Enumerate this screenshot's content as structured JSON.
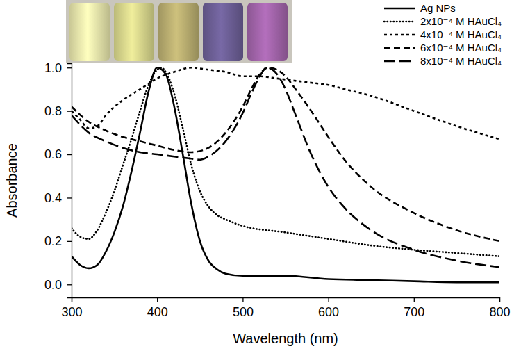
{
  "chart_data": {
    "type": "line",
    "x_label": "Wavelength (nm)",
    "y_label": "Absorbance",
    "xlim": [
      300,
      800
    ],
    "xticks": [
      300,
      400,
      500,
      600,
      700,
      800
    ],
    "ylim": [
      -0.06,
      1.02
    ],
    "yticks": [
      {
        "value": 0,
        "label": "0.0"
      },
      {
        "value": 0.2,
        "label": "0.2"
      },
      {
        "value": 0.4,
        "label": "0.4"
      },
      {
        "value": 0.6,
        "label": "0.6"
      },
      {
        "value": 0.8,
        "label": "0.8"
      },
      {
        "value": 1,
        "label": "1.0"
      }
    ],
    "legend": "top-right",
    "series": [
      {
        "name": "Ag NPs",
        "color": "#000000",
        "line_style": "solid",
        "x": [
          300,
          310,
          320,
          330,
          340,
          350,
          360,
          370,
          380,
          390,
          400,
          410,
          420,
          430,
          440,
          450,
          460,
          470,
          480,
          500,
          550,
          600,
          650,
          700,
          750,
          800
        ],
        "values": [
          0.13,
          0.09,
          0.075,
          0.09,
          0.15,
          0.24,
          0.36,
          0.52,
          0.7,
          0.89,
          1.0,
          0.97,
          0.82,
          0.6,
          0.37,
          0.2,
          0.11,
          0.07,
          0.05,
          0.04,
          0.04,
          0.025,
          0.02,
          0.015,
          0.01,
          0.01
        ]
      },
      {
        "name": "2x10⁻⁴ M HAuCl₄",
        "color": "#000000",
        "line_style": "dotted",
        "x": [
          300,
          310,
          320,
          330,
          340,
          350,
          360,
          370,
          380,
          390,
          400,
          405,
          410,
          420,
          430,
          440,
          450,
          460,
          470,
          480,
          500,
          550,
          600,
          650,
          700,
          750,
          800
        ],
        "values": [
          0.26,
          0.22,
          0.21,
          0.25,
          0.33,
          0.43,
          0.55,
          0.67,
          0.8,
          0.92,
          0.99,
          1.0,
          0.98,
          0.88,
          0.72,
          0.55,
          0.43,
          0.36,
          0.32,
          0.3,
          0.27,
          0.24,
          0.21,
          0.18,
          0.16,
          0.145,
          0.13
        ]
      },
      {
        "name": "4x10⁻⁴ M HAuCl₄",
        "color": "#000000",
        "line_style": "short-dash",
        "x": [
          300,
          310,
          320,
          330,
          340,
          360,
          380,
          400,
          420,
          440,
          460,
          480,
          500,
          520,
          540,
          560,
          580,
          600,
          620,
          650,
          700,
          750,
          800
        ],
        "values": [
          0.8,
          0.76,
          0.72,
          0.73,
          0.78,
          0.85,
          0.9,
          0.95,
          0.98,
          1.0,
          0.99,
          0.98,
          0.96,
          0.96,
          0.95,
          0.94,
          0.93,
          0.92,
          0.9,
          0.87,
          0.8,
          0.73,
          0.67
        ]
      },
      {
        "name": "6x10⁻⁴ M HAuCl₄",
        "color": "#000000",
        "line_style": "dash",
        "x": [
          300,
          320,
          340,
          360,
          380,
          400,
          420,
          440,
          460,
          480,
          500,
          510,
          520,
          530,
          540,
          550,
          560,
          580,
          600,
          620,
          650,
          700,
          750,
          800
        ],
        "values": [
          0.82,
          0.75,
          0.71,
          0.68,
          0.66,
          0.64,
          0.62,
          0.61,
          0.63,
          0.7,
          0.82,
          0.9,
          0.97,
          1.0,
          0.99,
          0.96,
          0.91,
          0.8,
          0.68,
          0.57,
          0.45,
          0.33,
          0.25,
          0.2
        ]
      },
      {
        "name": "8x10⁻⁴ M HAuCl₄",
        "color": "#000000",
        "line_style": "long-dash",
        "x": [
          300,
          320,
          340,
          360,
          380,
          400,
          420,
          440,
          450,
          460,
          480,
          500,
          510,
          520,
          528,
          540,
          550,
          560,
          580,
          600,
          620,
          650,
          700,
          750,
          800
        ],
        "values": [
          0.78,
          0.7,
          0.66,
          0.63,
          0.61,
          0.6,
          0.59,
          0.58,
          0.575,
          0.59,
          0.66,
          0.79,
          0.88,
          0.96,
          1.0,
          0.97,
          0.9,
          0.8,
          0.6,
          0.45,
          0.35,
          0.25,
          0.16,
          0.11,
          0.08
        ]
      }
    ]
  }
}
